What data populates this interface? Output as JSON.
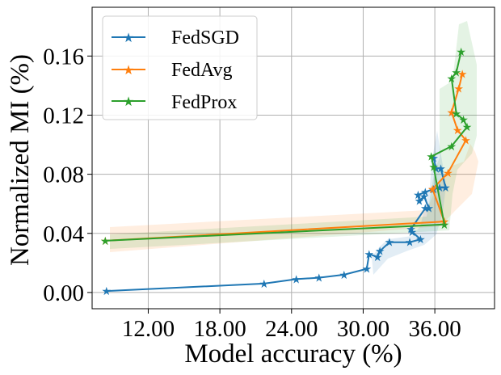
{
  "chart_data": {
    "type": "line",
    "title": "",
    "xlabel": "Model accuracy (%)",
    "ylabel": "Normalized MI (%)",
    "xlim": [
      7.3,
      41.0
    ],
    "ylim": [
      -0.011,
      0.193
    ],
    "xticks": [
      12,
      18,
      24,
      30,
      36
    ],
    "xtick_labels": [
      "12.00",
      "18.00",
      "24.00",
      "30.00",
      "36.00"
    ],
    "yticks": [
      0.0,
      0.04,
      0.08,
      0.12,
      0.16
    ],
    "ytick_labels": [
      "0.00",
      "0.04",
      "0.08",
      "0.12",
      "0.16"
    ],
    "grid": true,
    "legend_position": "top-left",
    "series": [
      {
        "name": "FedSGD",
        "color": "#1f77b4",
        "x": [
          8.5,
          21.7,
          24.4,
          26.3,
          28.4,
          30.3,
          30.5,
          31.2,
          31.4,
          32.2,
          33.9,
          34.8,
          34.1,
          34.0,
          35.2,
          35.5,
          35.1,
          34.7,
          34.6,
          35.2,
          35.9,
          36.4,
          36.9,
          36.5,
          36.1,
          35.9
        ],
        "y": [
          0.001,
          0.006,
          0.009,
          0.01,
          0.012,
          0.016,
          0.026,
          0.024,
          0.028,
          0.034,
          0.034,
          0.036,
          0.041,
          0.043,
          0.057,
          0.057,
          0.065,
          0.062,
          0.066,
          0.068,
          0.07,
          0.071,
          0.071,
          0.084,
          0.084,
          0.091
        ]
      },
      {
        "name": "FedAvg",
        "color": "#ff7f0e",
        "x": [
          8.4,
          36.8,
          35.8,
          37.1,
          38.6,
          37.9,
          37.4,
          38.0,
          38.3
        ],
        "y": [
          0.035,
          0.048,
          0.07,
          0.081,
          0.103,
          0.11,
          0.122,
          0.138,
          0.148
        ]
      },
      {
        "name": "FedProx",
        "color": "#2ca02c",
        "x": [
          8.4,
          36.8,
          35.9,
          35.7,
          37.4,
          38.7,
          38.4,
          37.8,
          37.4,
          37.8,
          38.2
        ],
        "y": [
          0.035,
          0.046,
          0.085,
          0.092,
          0.099,
          0.112,
          0.117,
          0.121,
          0.145,
          0.149,
          0.163
        ]
      }
    ]
  }
}
